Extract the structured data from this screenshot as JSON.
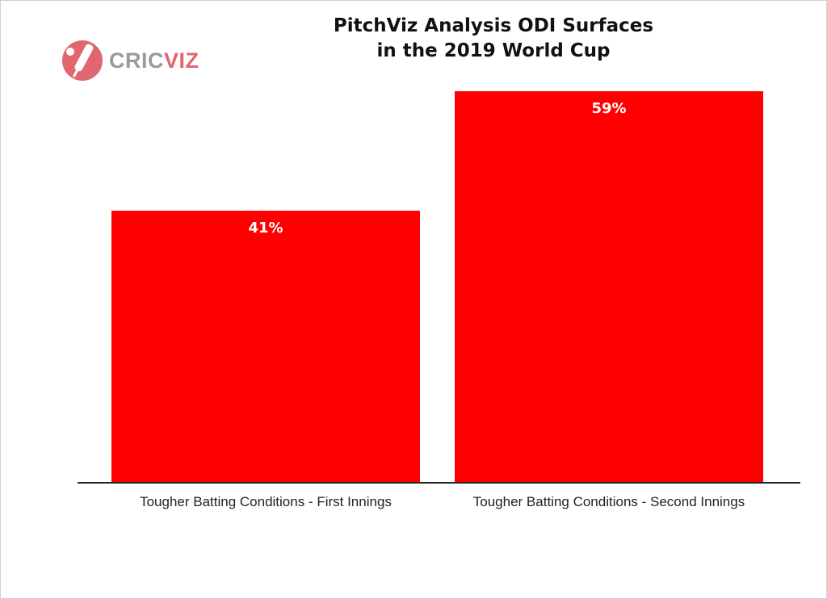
{
  "brand": {
    "logo_icon": "cricket-bat-ball-icon",
    "name_part1": "CRIC",
    "name_part2": "VIZ",
    "colors": {
      "mark": "#e0666f",
      "text_gray": "#9a9a9a"
    }
  },
  "chart_data": {
    "type": "bar",
    "title_lines": [
      "PitchViz Analysis ODI Surfaces",
      "in the 2019 World Cup"
    ],
    "categories": [
      "Tougher Batting Conditions - First Innings",
      "Tougher Batting Conditions - Second Innings"
    ],
    "values": [
      41,
      59
    ],
    "value_labels": [
      "41%",
      "59%"
    ],
    "unit": "%",
    "xlabel": "",
    "ylabel": "",
    "ylim": [
      0,
      59
    ],
    "grid": false,
    "legend": "none",
    "bar_color": "#ff0000"
  }
}
